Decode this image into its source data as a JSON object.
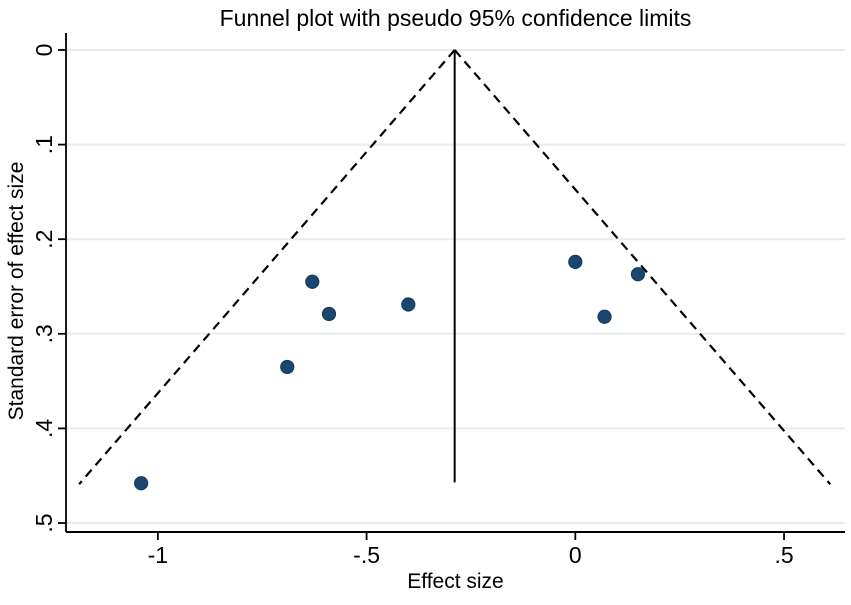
{
  "chart": {
    "title": "Funnel plot with pseudo 95% confidence limits",
    "xlabel": "Effect size",
    "ylabel": "Standard error of effect size"
  },
  "chart_data": {
    "type": "scatter",
    "title": "Funnel plot with pseudo 95% confidence limits",
    "xlabel": "Effect size",
    "ylabel": "Standard error of effect size",
    "x_axis": {
      "lim": [
        -1.22,
        0.646
      ],
      "ticks": [
        {
          "value": -1,
          "label": "-1"
        },
        {
          "value": -0.5,
          "label": "-.5"
        },
        {
          "value": 0,
          "label": "0"
        },
        {
          "value": 0.5,
          "label": ".5"
        }
      ]
    },
    "y_axis": {
      "lim": [
        0,
        0.5095
      ],
      "inverted": true,
      "ticks": [
        {
          "value": 0,
          "label": "0"
        },
        {
          "value": 0.1,
          "label": ".1"
        },
        {
          "value": 0.2,
          "label": ".2"
        },
        {
          "value": 0.3,
          "label": ".3"
        },
        {
          "value": 0.4,
          "label": ".4"
        },
        {
          "value": 0.5,
          "label": ".5"
        }
      ]
    },
    "grid": "horizontal",
    "legend": "none",
    "points": [
      {
        "effect": -1.04,
        "se": 0.458
      },
      {
        "effect": -0.69,
        "se": 0.335
      },
      {
        "effect": -0.63,
        "se": 0.245
      },
      {
        "effect": -0.59,
        "se": 0.279
      },
      {
        "effect": -0.4,
        "se": 0.269
      },
      {
        "effect": 0.0,
        "se": 0.224
      },
      {
        "effect": 0.07,
        "se": 0.282
      },
      {
        "effect": 0.15,
        "se": 0.237
      }
    ],
    "funnel": {
      "center_effect": -0.289,
      "z": 1.96,
      "se_start": 0,
      "se_end": 0.459,
      "line_style": "dashed"
    },
    "center_line": {
      "effect": -0.289,
      "se_start": 0,
      "se_end": 0.457,
      "line_style": "solid"
    },
    "colors": {
      "marker": "#1a476f",
      "marker_edge": "#13385a",
      "grid": "#e4edef",
      "axis": "#000000",
      "text": "#000000",
      "background": "#ffffff"
    }
  }
}
